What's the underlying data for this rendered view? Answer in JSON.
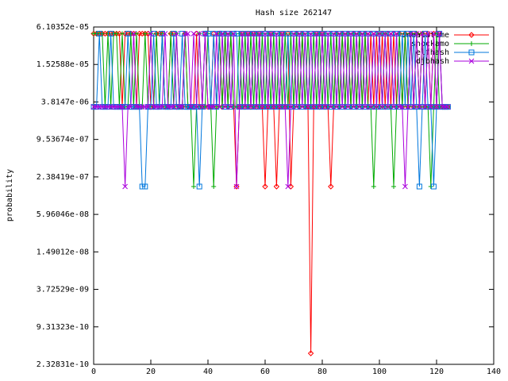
{
  "chart_data": {
    "type": "line",
    "title": "Hash size 262147",
    "ylabel": "probability",
    "log_y": true,
    "grid": false,
    "legend": "top-right",
    "xlim": [
      0,
      140
    ],
    "xticks": [
      0,
      20,
      40,
      60,
      80,
      100,
      120,
      140
    ],
    "ylim": [
      2.32831e-10,
      6.10352e-05
    ],
    "yticks": [
      {
        "value": 2.32831e-10,
        "label": "2.32831e-10"
      },
      {
        "value": 9.31323e-10,
        "label": "9.31323e-10"
      },
      {
        "value": 3.72529e-09,
        "label": "3.72529e-09"
      },
      {
        "value": 1.49012e-08,
        "label": "1.49012e-08"
      },
      {
        "value": 5.96046e-08,
        "label": "5.96046e-08"
      },
      {
        "value": 2.38419e-07,
        "label": "2.38419e-07"
      },
      {
        "value": 9.53674e-07,
        "label": "9.53674e-07"
      },
      {
        "value": 3.8147e-06,
        "label": "3.8147e-06"
      },
      {
        "value": 1.52588e-05,
        "label": "1.52588e-05"
      },
      {
        "value": 6.10352e-05,
        "label": "6.10352e-05"
      }
    ],
    "x": [
      0,
      1,
      2,
      3,
      4,
      5,
      6,
      7,
      8,
      9,
      10,
      11,
      12,
      13,
      14,
      15,
      16,
      17,
      18,
      19,
      20,
      21,
      22,
      23,
      24,
      25,
      26,
      27,
      28,
      29,
      30,
      31,
      32,
      33,
      34,
      35,
      36,
      37,
      38,
      39,
      40,
      41,
      42,
      43,
      44,
      45,
      46,
      47,
      48,
      49,
      50,
      51,
      52,
      53,
      54,
      55,
      56,
      57,
      58,
      59,
      60,
      61,
      62,
      63,
      64,
      65,
      66,
      67,
      68,
      69,
      70,
      71,
      72,
      73,
      74,
      75,
      76,
      77,
      78,
      79,
      80,
      81,
      82,
      83,
      84,
      85,
      86,
      87,
      88,
      89,
      90,
      91,
      92,
      93,
      94,
      95,
      96,
      97,
      98,
      99,
      100,
      101,
      102,
      103,
      104,
      105,
      106,
      107,
      108,
      109,
      110,
      111,
      112,
      113,
      114,
      115,
      116,
      117,
      118,
      119,
      120,
      121,
      122,
      123,
      124
    ],
    "series": [
      {
        "name": "oneatatime",
        "color": "#ff0000",
        "marker": "diamond",
        "values": [
          4.77e-05,
          4.77e-05,
          4.77e-05,
          4.77e-05,
          4.77e-05,
          4.77e-05,
          4.77e-05,
          4.77e-05,
          4.77e-05,
          4.77e-05,
          3.18e-06,
          4.77e-05,
          4.77e-05,
          4.77e-05,
          4.77e-05,
          3.18e-06,
          4.77e-05,
          4.77e-05,
          4.77e-05,
          4.77e-05,
          3.18e-06,
          3.18e-06,
          4.77e-05,
          4.77e-05,
          4.77e-05,
          3.18e-06,
          3.18e-06,
          4.77e-05,
          4.77e-05,
          3.18e-06,
          3.18e-06,
          3.18e-06,
          4.77e-05,
          3.18e-06,
          3.18e-06,
          3.18e-06,
          4.77e-05,
          3.18e-06,
          3.18e-06,
          4.77e-05,
          3.18e-06,
          3.18e-06,
          4.77e-05,
          3.18e-06,
          4.77e-05,
          3.18e-06,
          4.77e-05,
          3.18e-06,
          4.77e-05,
          3.18e-06,
          1.67e-07,
          3.18e-06,
          4.77e-05,
          3.18e-06,
          4.77e-05,
          3.18e-06,
          4.77e-05,
          3.18e-06,
          4.77e-05,
          3.18e-06,
          1.67e-07,
          3.18e-06,
          4.77e-05,
          3.18e-06,
          1.67e-07,
          3.18e-06,
          4.77e-05,
          3.18e-06,
          4.77e-05,
          1.67e-07,
          3.18e-06,
          4.77e-05,
          3.18e-06,
          4.77e-05,
          3.18e-06,
          3.18e-06,
          3.5e-10,
          3.18e-06,
          4.77e-05,
          3.18e-06,
          4.77e-05,
          3.18e-06,
          3.18e-06,
          1.67e-07,
          3.18e-06,
          4.77e-05,
          3.18e-06,
          4.77e-05,
          3.18e-06,
          4.77e-05,
          3.18e-06,
          4.77e-05,
          3.18e-06,
          4.77e-05,
          3.18e-06,
          4.77e-05,
          3.18e-06,
          4.77e-05,
          3.18e-06,
          4.77e-05,
          3.18e-06,
          4.77e-05,
          3.18e-06,
          4.77e-05,
          3.18e-06,
          4.77e-05,
          3.18e-06,
          4.77e-05,
          3.18e-06,
          4.77e-05,
          3.18e-06,
          4.77e-05,
          3.18e-06,
          4.77e-05,
          3.18e-06,
          4.77e-05,
          3.18e-06,
          4.77e-05,
          3.18e-06,
          4.77e-05,
          3.18e-06,
          4.77e-05,
          3.18e-06,
          3.18e-06,
          3.18e-06
        ]
      },
      {
        "name": "shockamo",
        "color": "#00aa00",
        "marker": "plus",
        "values": [
          4.77e-05,
          4.77e-05,
          4.77e-05,
          4.77e-05,
          3.18e-06,
          4.77e-05,
          3.18e-06,
          4.77e-05,
          4.77e-05,
          3.18e-06,
          4.77e-05,
          3.18e-06,
          3.18e-06,
          4.77e-05,
          3.18e-06,
          4.77e-05,
          3.18e-06,
          3.18e-06,
          4.77e-05,
          3.18e-06,
          4.77e-05,
          3.18e-06,
          4.77e-05,
          3.18e-06,
          4.77e-05,
          3.18e-06,
          3.18e-06,
          4.77e-05,
          3.18e-06,
          4.77e-05,
          3.18e-06,
          3.18e-06,
          4.77e-05,
          3.18e-06,
          3.18e-06,
          1.67e-07,
          3.18e-06,
          4.77e-05,
          3.18e-06,
          3.18e-06,
          4.77e-05,
          3.18e-06,
          1.67e-07,
          3.18e-06,
          4.77e-05,
          3.18e-06,
          4.77e-05,
          3.18e-06,
          4.77e-05,
          3.18e-06,
          3.18e-06,
          4.77e-05,
          3.18e-06,
          4.77e-05,
          3.18e-06,
          4.77e-05,
          3.18e-06,
          4.77e-05,
          3.18e-06,
          4.77e-05,
          3.18e-06,
          4.77e-05,
          3.18e-06,
          4.77e-05,
          3.18e-06,
          4.77e-05,
          3.18e-06,
          4.77e-05,
          3.18e-06,
          4.77e-05,
          3.18e-06,
          4.77e-05,
          3.18e-06,
          4.77e-05,
          3.18e-06,
          4.77e-05,
          3.18e-06,
          4.77e-05,
          3.18e-06,
          4.77e-05,
          3.18e-06,
          4.77e-05,
          3.18e-06,
          4.77e-05,
          3.18e-06,
          4.77e-05,
          3.18e-06,
          4.77e-05,
          3.18e-06,
          4.77e-05,
          3.18e-06,
          4.77e-05,
          3.18e-06,
          4.77e-05,
          3.18e-06,
          4.77e-05,
          3.18e-06,
          3.18e-06,
          1.67e-07,
          3.18e-06,
          4.77e-05,
          3.18e-06,
          4.77e-05,
          3.18e-06,
          3.18e-06,
          1.67e-07,
          3.18e-06,
          4.77e-05,
          3.18e-06,
          4.77e-05,
          3.18e-06,
          4.77e-05,
          3.18e-06,
          4.77e-05,
          3.18e-06,
          4.77e-05,
          3.18e-06,
          3.18e-06,
          1.67e-07,
          3.18e-06,
          4.77e-05,
          3.18e-06,
          3.18e-06,
          3.18e-06,
          3.18e-06
        ]
      },
      {
        "name": "elfhash",
        "color": "#0077dd",
        "marker": "square",
        "values": [
          3.18e-06,
          3.18e-06,
          4.77e-05,
          3.18e-06,
          3.18e-06,
          3.18e-06,
          4.77e-05,
          3.18e-06,
          3.18e-06,
          3.18e-06,
          3.18e-06,
          3.18e-06,
          4.77e-05,
          3.18e-06,
          3.18e-06,
          3.18e-06,
          3.18e-06,
          1.67e-07,
          1.67e-07,
          3.18e-06,
          3.18e-06,
          4.77e-05,
          3.18e-06,
          3.18e-06,
          4.77e-05,
          3.18e-06,
          3.18e-06,
          3.18e-06,
          4.77e-05,
          3.18e-06,
          3.18e-06,
          4.77e-05,
          3.18e-06,
          3.18e-06,
          3.18e-06,
          3.18e-06,
          3.18e-06,
          1.67e-07,
          3.18e-06,
          4.77e-05,
          4.77e-05,
          3.18e-06,
          4.77e-05,
          3.18e-06,
          4.77e-05,
          4.77e-05,
          3.18e-06,
          4.77e-05,
          3.18e-06,
          4.77e-05,
          4.77e-05,
          3.18e-06,
          4.77e-05,
          3.18e-06,
          4.77e-05,
          3.18e-06,
          4.77e-05,
          3.18e-06,
          4.77e-05,
          3.18e-06,
          4.77e-05,
          3.18e-06,
          4.77e-05,
          3.18e-06,
          4.77e-05,
          3.18e-06,
          4.77e-05,
          3.18e-06,
          4.77e-05,
          3.18e-06,
          4.77e-05,
          3.18e-06,
          4.77e-05,
          3.18e-06,
          4.77e-05,
          3.18e-06,
          4.77e-05,
          3.18e-06,
          4.77e-05,
          3.18e-06,
          4.77e-05,
          3.18e-06,
          4.77e-05,
          3.18e-06,
          4.77e-05,
          3.18e-06,
          4.77e-05,
          3.18e-06,
          4.77e-05,
          3.18e-06,
          4.77e-05,
          3.18e-06,
          4.77e-05,
          3.18e-06,
          4.77e-05,
          3.18e-06,
          4.77e-05,
          3.18e-06,
          4.77e-05,
          3.18e-06,
          4.77e-05,
          3.18e-06,
          4.77e-05,
          3.18e-06,
          4.77e-05,
          3.18e-06,
          4.77e-05,
          3.18e-06,
          4.77e-05,
          3.18e-06,
          4.77e-05,
          3.18e-06,
          4.77e-05,
          3.18e-06,
          1.67e-07,
          3.18e-06,
          4.77e-05,
          3.18e-06,
          3.18e-06,
          1.67e-07,
          3.18e-06,
          4.77e-05,
          3.18e-06,
          3.18e-06,
          3.18e-06
        ]
      },
      {
        "name": "djbhash",
        "color": "#aa00dd",
        "marker": "cross",
        "values": [
          3.18e-06,
          3.18e-06,
          3.18e-06,
          3.18e-06,
          3.18e-06,
          3.18e-06,
          3.18e-06,
          3.18e-06,
          3.18e-06,
          3.18e-06,
          3.18e-06,
          1.67e-07,
          3.18e-06,
          3.18e-06,
          4.77e-05,
          3.18e-06,
          3.18e-06,
          3.18e-06,
          3.18e-06,
          3.18e-06,
          4.77e-05,
          3.18e-06,
          3.18e-06,
          3.18e-06,
          3.18e-06,
          4.77e-05,
          3.18e-06,
          3.18e-06,
          3.18e-06,
          4.77e-05,
          3.18e-06,
          3.18e-06,
          4.77e-05,
          4.77e-05,
          3.18e-06,
          4.77e-05,
          3.18e-06,
          4.77e-05,
          3.18e-06,
          4.77e-05,
          3.18e-06,
          3.18e-06,
          3.18e-06,
          4.77e-05,
          3.18e-06,
          4.77e-05,
          3.18e-06,
          4.77e-05,
          3.18e-06,
          4.77e-05,
          1.67e-07,
          3.18e-06,
          4.77e-05,
          3.18e-06,
          4.77e-05,
          3.18e-06,
          4.77e-05,
          3.18e-06,
          4.77e-05,
          3.18e-06,
          4.77e-05,
          3.18e-06,
          4.77e-05,
          3.18e-06,
          4.77e-05,
          3.18e-06,
          4.77e-05,
          3.18e-06,
          1.67e-07,
          3.18e-06,
          4.77e-05,
          3.18e-06,
          4.77e-05,
          3.18e-06,
          4.77e-05,
          3.18e-06,
          4.77e-05,
          3.18e-06,
          4.77e-05,
          3.18e-06,
          4.77e-05,
          3.18e-06,
          4.77e-05,
          3.18e-06,
          4.77e-05,
          3.18e-06,
          4.77e-05,
          3.18e-06,
          4.77e-05,
          3.18e-06,
          4.77e-05,
          3.18e-06,
          4.77e-05,
          3.18e-06,
          4.77e-05,
          3.18e-06,
          4.77e-05,
          3.18e-06,
          4.77e-05,
          3.18e-06,
          4.77e-05,
          3.18e-06,
          4.77e-05,
          3.18e-06,
          4.77e-05,
          3.18e-06,
          4.77e-05,
          3.18e-06,
          3.18e-06,
          1.67e-07,
          3.18e-06,
          4.77e-05,
          3.18e-06,
          4.77e-05,
          3.18e-06,
          4.77e-05,
          3.18e-06,
          4.77e-05,
          3.18e-06,
          4.77e-05,
          3.18e-06,
          4.77e-05,
          3.18e-06,
          3.18e-06,
          3.18e-06
        ]
      }
    ]
  }
}
